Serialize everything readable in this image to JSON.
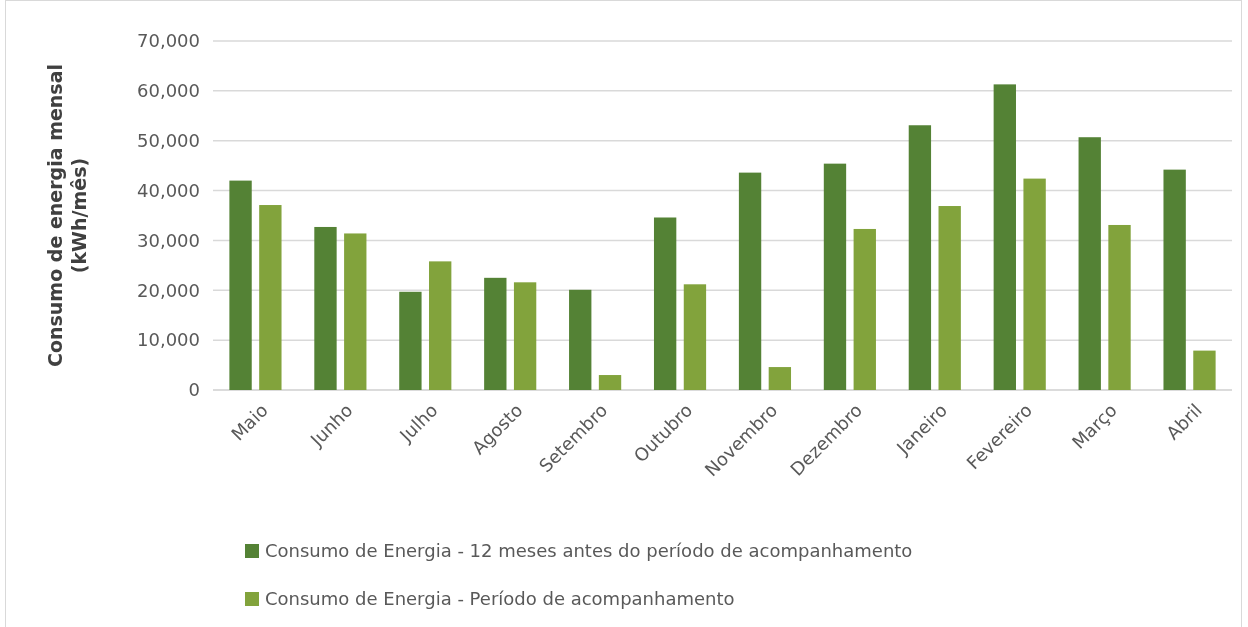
{
  "chart_data": {
    "type": "bar",
    "ylabel": "Consumo de energia mensal\n(kWh/mês)",
    "categories": [
      "Maio",
      "Junho",
      "Julho",
      "Agosto",
      "Setembro",
      "Outubro",
      "Novembro",
      "Dezembro",
      "Janeiro",
      "Fevereiro",
      "Março",
      "Abril"
    ],
    "series": [
      {
        "name": "Consumo de Energia - 12 meses antes do período de acompanhamento",
        "color": "#548235",
        "values": [
          42000,
          32700,
          19700,
          22500,
          20100,
          34600,
          43600,
          45400,
          53100,
          61300,
          50700,
          44200
        ]
      },
      {
        "name": "Consumo de Energia - Período de acompanhamento",
        "color": "#82a33c",
        "values": [
          37100,
          31400,
          25800,
          21600,
          3000,
          21200,
          4600,
          32300,
          36900,
          42400,
          33100,
          7900
        ]
      }
    ],
    "ylim": [
      0,
      70000
    ],
    "yticks": [
      {
        "value": 0,
        "label": "0"
      },
      {
        "value": 10000,
        "label": "10,000"
      },
      {
        "value": 20000,
        "label": "20,000"
      },
      {
        "value": 30000,
        "label": "30,000"
      },
      {
        "value": 40000,
        "label": "40,000"
      },
      {
        "value": 50000,
        "label": "50,000"
      },
      {
        "value": 60000,
        "label": "60,000"
      },
      {
        "value": 70000,
        "label": "70,000"
      }
    ],
    "grid": "y",
    "legend": "bottom"
  }
}
